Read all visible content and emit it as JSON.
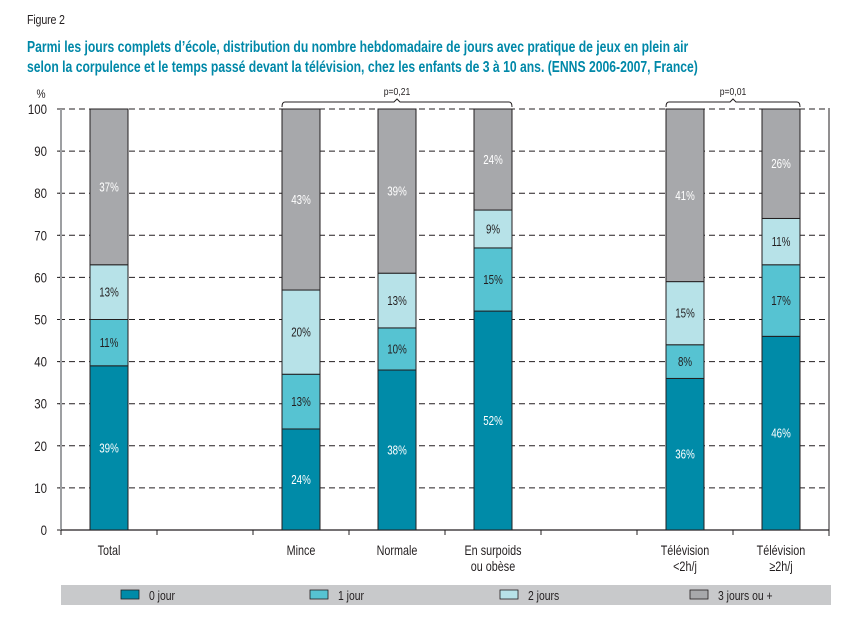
{
  "figure_label": "Figure 2",
  "title_lines": [
    "Parmi les jours complets d’école, distribution du nombre hebdomadaire de jours avec pratique de jeux en plein air",
    "selon la corpulence et le temps passé devant la télévision, chez les enfants de 3 à 10 ans. (ENNS 2006-2007, France)"
  ],
  "colors": {
    "title": "#0088a8",
    "0 jour": "#008ba8",
    "1 jour": "#56c3d2",
    "2 jours": "#b7e2e8",
    "3 jours ou +": "#a7a8ab",
    "legend_band": "#c8c9cb"
  },
  "chart_data": {
    "type": "bar",
    "stacked": true,
    "title": "Parmi les jours complets d’école, distribution du nombre hebdomadaire de jours avec pratique de jeux en plein air selon la corpulence et le temps passé devant la télévision, chez les enfants de 3 à 10 ans. (ENNS 2006-2007, France)",
    "ylabel": "%",
    "xlabel": "",
    "ylim": [
      0,
      100
    ],
    "yticks": [
      0,
      10,
      20,
      30,
      40,
      50,
      60,
      70,
      80,
      90,
      100
    ],
    "grid": "horizontal dashed",
    "slots": [
      "Total",
      "",
      "Mince",
      "Normale",
      "En surpoids\nou obèse",
      "",
      "Télévision\n<2h/j",
      "Télévision\n≥2h/j"
    ],
    "categories": [
      "Total",
      "Mince",
      "Normale",
      "En surpoids ou obèse",
      "Télévision <2h/j",
      "Télévision ≥2h/j"
    ],
    "category_labels": [
      [
        "Total"
      ],
      [
        "Mince"
      ],
      [
        "Normale"
      ],
      [
        "En surpoids",
        "ou obèse"
      ],
      [
        "Télévision",
        "<2h/j"
      ],
      [
        "Télévision",
        "≥2h/j"
      ]
    ],
    "category_slot_index": [
      0,
      2,
      3,
      4,
      6,
      7
    ],
    "series": [
      {
        "name": "0 jour",
        "values": [
          39,
          24,
          38,
          52,
          36,
          46
        ]
      },
      {
        "name": "1 jour",
        "values": [
          11,
          13,
          10,
          15,
          8,
          17
        ]
      },
      {
        "name": "2 jours",
        "values": [
          13,
          20,
          13,
          9,
          15,
          11
        ]
      },
      {
        "name": "3 jours ou +",
        "values": [
          37,
          43,
          39,
          24,
          41,
          26
        ]
      }
    ],
    "data_labels": [
      [
        "39%",
        "24%",
        "38%",
        "52%",
        "36%",
        "46%"
      ],
      [
        "11%",
        "13%",
        "10%",
        "15%",
        "8%",
        "17%"
      ],
      [
        "13%",
        "20%",
        "13%",
        "9%",
        "15%",
        "11%"
      ],
      [
        "37%",
        "43%",
        "39%",
        "24%",
        "41%",
        "26%"
      ]
    ],
    "annotations": [
      {
        "text": "p=0,21",
        "spans": [
          "Mince",
          "Normale",
          "En surpoids ou obèse"
        ]
      },
      {
        "text": "p=0,01",
        "spans": [
          "Télévision <2h/j",
          "Télévision ≥2h/j"
        ]
      }
    ],
    "legend": {
      "placement": "bottom",
      "entries": [
        "0 jour",
        "1 jour",
        "2 jours",
        "3 jours ou +"
      ]
    }
  }
}
